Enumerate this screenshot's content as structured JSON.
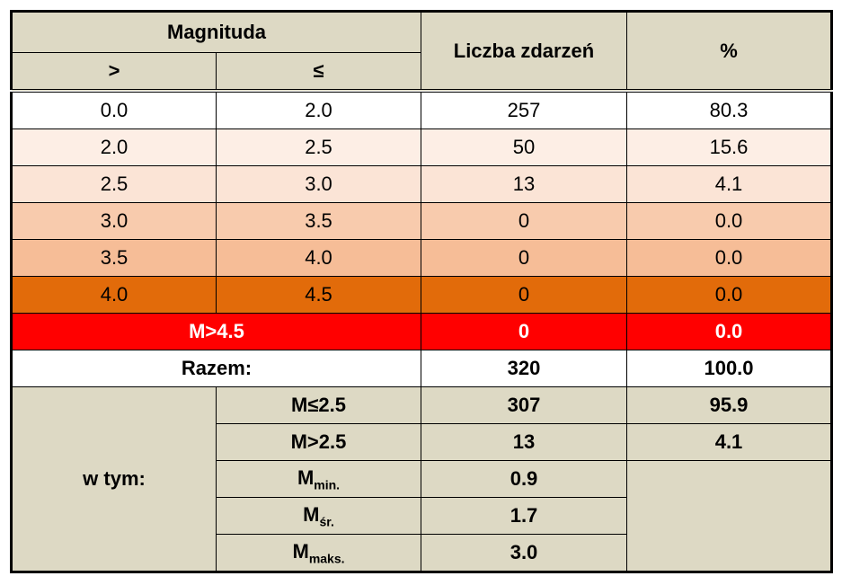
{
  "header": {
    "magnitude": "Magnituda",
    "from": ">",
    "to": "≤",
    "count": "Liczba zdarzeń",
    "percent": "%"
  },
  "rows": [
    [
      "0.0",
      "2.0",
      "257",
      "80.3"
    ],
    [
      "2.0",
      "2.5",
      "50",
      "15.6"
    ],
    [
      "2.5",
      "3.0",
      "13",
      "4.1"
    ],
    [
      "3.0",
      "3.5",
      "0",
      "0.0"
    ],
    [
      "3.5",
      "4.0",
      "0",
      "0.0"
    ],
    [
      "4.0",
      "4.5",
      "0",
      "0.0"
    ]
  ],
  "above": {
    "label": "M>4.5",
    "count": "0",
    "percent": "0.0"
  },
  "total": {
    "label": "Razem:",
    "count": "320",
    "percent": "100.0"
  },
  "breakdown": {
    "label": "w tym:",
    "items": [
      {
        "label": "M≤2.5",
        "value": "307",
        "percent": "95.9"
      },
      {
        "label": "M>2.5",
        "value": "13",
        "percent": "4.1"
      },
      {
        "base": "M",
        "sub": "min.",
        "value": "0.9"
      },
      {
        "base": "M",
        "sub": "śr.",
        "value": "1.7"
      },
      {
        "base": "M",
        "sub": "maks.",
        "value": "3.0"
      }
    ]
  }
}
